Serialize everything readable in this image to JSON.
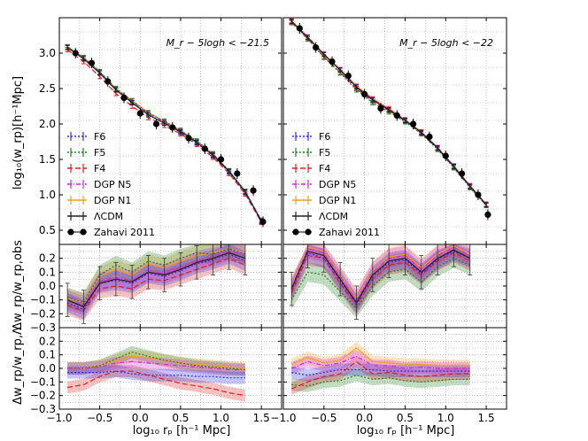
{
  "chart_data": {
    "type": "line",
    "xlabel": "log₁₀ rₚ [h⁻¹ Mpc]",
    "xlim": [
      -1.0,
      1.75
    ],
    "xticks": [
      -1.0,
      -0.5,
      0.0,
      0.5,
      1.0,
      1.5
    ],
    "x_tick_labels": [
      "−1.0",
      "−0.5",
      "0.0",
      "0.5",
      "1.0",
      "1.5"
    ],
    "ylabels": {
      "top": "log₁₀(w_rp)[h⁻¹Mpc]",
      "middle": "Δw_rp/w_rp,obs",
      "bottom": "Δw_rp/w_rp,Λ"
    },
    "ylim_top": [
      0.3,
      3.5
    ],
    "yticks_top": [
      0.5,
      1.0,
      1.5,
      2.0,
      2.5,
      3.0
    ],
    "ytick_labels_top": [
      "0.5",
      "1.0",
      "1.5",
      "2.0",
      "2.5",
      "3.0"
    ],
    "ylim_ratio": [
      -0.3,
      0.3
    ],
    "yticks_ratio": [
      -0.3,
      -0.2,
      -0.1,
      0.0,
      0.1,
      0.2
    ],
    "ytick_labels_ratio": [
      "−0.3",
      "−0.2",
      "−0.1",
      "0.0",
      "0.1",
      "0.2"
    ],
    "grid": true,
    "legend_position": "lower-left",
    "models": [
      {
        "key": "F6",
        "name": "F6",
        "color": "#3030e0",
        "dash": "2,2"
      },
      {
        "key": "F5",
        "name": "F5",
        "color": "#208020",
        "dash": "2,2"
      },
      {
        "key": "F4",
        "name": "F4",
        "color": "#e02020",
        "dash": "6,3"
      },
      {
        "key": "N5",
        "name": "DGP N5",
        "color": "#e020e0",
        "dash": "5,2,1,2"
      },
      {
        "key": "N1",
        "name": "DGP N1",
        "color": "#f0a020",
        "dash": ""
      },
      {
        "key": "LCDM",
        "name": "ΛCDM",
        "color": "#222222",
        "dash": ""
      }
    ],
    "observed_label": "Zahavi 2011",
    "panels": [
      {
        "title": "M_r − 5logh < −21.5",
        "x": [
          -0.9,
          -0.7,
          -0.5,
          -0.3,
          -0.1,
          0.1,
          0.3,
          0.5,
          0.7,
          0.9,
          1.1,
          1.3,
          1.5
        ],
        "zahavi": [
          3.08,
          2.98,
          2.85,
          2.6,
          2.37,
          2.16,
          2.0,
          1.85,
          1.68,
          1.5,
          1.3,
          1.06,
          0.72
        ],
        "zahavi_x": [
          -0.8,
          -0.6,
          -0.4,
          -0.2,
          0.0,
          0.2,
          0.4,
          0.6,
          0.8,
          1.0,
          1.2,
          1.4,
          1.52
        ],
        "zahavi_y": [
          3.0,
          2.86,
          2.6,
          2.37,
          2.15,
          2.0,
          1.95,
          1.8,
          1.65,
          1.5,
          1.3,
          1.06,
          0.62
        ],
        "wp": {
          "LCDM": [
            3.08,
            2.92,
            2.72,
            2.48,
            2.3,
            2.13,
            2.01,
            1.89,
            1.74,
            1.56,
            1.33,
            1.04,
            0.63
          ],
          "F6": [
            3.08,
            2.92,
            2.72,
            2.48,
            2.3,
            2.13,
            2.01,
            1.88,
            1.73,
            1.55,
            1.32,
            1.03,
            0.62
          ],
          "F5": [
            3.09,
            2.94,
            2.74,
            2.5,
            2.33,
            2.16,
            2.04,
            1.91,
            1.76,
            1.58,
            1.34,
            1.05,
            0.63
          ],
          "F4": [
            3.05,
            2.88,
            2.67,
            2.43,
            2.25,
            2.09,
            1.98,
            1.86,
            1.71,
            1.53,
            1.3,
            1.01,
            0.61
          ],
          "N5": [
            3.08,
            2.93,
            2.73,
            2.49,
            2.32,
            2.15,
            2.03,
            1.9,
            1.75,
            1.57,
            1.34,
            1.05,
            0.64
          ],
          "N1": [
            3.09,
            2.94,
            2.74,
            2.5,
            2.33,
            2.16,
            2.04,
            1.91,
            1.76,
            1.58,
            1.34,
            1.05,
            0.63
          ]
        },
        "ratio_obs": {
          "LCDM": [
            -0.1,
            -0.15,
            0.02,
            0.05,
            0.03,
            0.1,
            0.08,
            0.12,
            0.17,
            0.2,
            0.24,
            0.2
          ],
          "F6": [
            -0.12,
            -0.17,
            0.02,
            0.04,
            0.02,
            0.09,
            0.07,
            0.11,
            0.16,
            0.19,
            0.23,
            0.18
          ],
          "F5": [
            -0.08,
            -0.12,
            0.08,
            0.15,
            0.1,
            0.18,
            0.15,
            0.2,
            0.24,
            0.23,
            0.27,
            0.23
          ],
          "F4": [
            -0.14,
            -0.18,
            -0.02,
            0.0,
            -0.02,
            0.05,
            0.04,
            0.08,
            0.12,
            0.16,
            0.2,
            0.15
          ],
          "N5": [
            -0.1,
            -0.14,
            0.03,
            0.06,
            0.04,
            0.1,
            0.09,
            0.13,
            0.18,
            0.21,
            0.25,
            0.22
          ],
          "N1": [
            -0.09,
            -0.12,
            0.07,
            0.12,
            0.08,
            0.16,
            0.13,
            0.18,
            0.22,
            0.24,
            0.27,
            0.24
          ]
        },
        "ratio_lcdm": {
          "F6": [
            -0.03,
            -0.03,
            -0.03,
            -0.02,
            -0.04,
            -0.05,
            -0.05,
            -0.05,
            -0.06,
            -0.06,
            -0.07,
            -0.07
          ],
          "F5": [
            0.0,
            0.0,
            0.02,
            0.07,
            0.12,
            0.09,
            0.06,
            0.04,
            0.02,
            0.01,
            0.0,
            -0.01
          ],
          "F4": [
            -0.14,
            -0.12,
            -0.06,
            -0.02,
            -0.02,
            -0.05,
            -0.08,
            -0.11,
            -0.13,
            -0.15,
            -0.18,
            -0.2
          ],
          "N5": [
            0.0,
            0.0,
            0.01,
            0.04,
            0.05,
            0.04,
            0.03,
            0.02,
            0.01,
            0.0,
            -0.01,
            -0.01
          ],
          "N1": [
            0.0,
            0.0,
            0.02,
            0.06,
            0.09,
            0.08,
            0.06,
            0.04,
            0.03,
            0.02,
            0.01,
            0.0
          ]
        }
      },
      {
        "title": "M_r − 5logh < −22",
        "x": [
          -0.9,
          -0.7,
          -0.5,
          -0.3,
          -0.1,
          0.1,
          0.3,
          0.5,
          0.7,
          0.9,
          1.1,
          1.3,
          1.5
        ],
        "zahavi_x": [
          -0.8,
          -0.6,
          -0.4,
          -0.2,
          0.0,
          0.2,
          0.4,
          0.6,
          0.8,
          1.0,
          1.2,
          1.4,
          1.52
        ],
        "zahavi_y": [
          3.35,
          3.08,
          2.88,
          2.68,
          2.42,
          2.22,
          2.12,
          2.0,
          1.82,
          1.55,
          1.3,
          1.0,
          0.72
        ],
        "wp": {
          "LCDM": [
            3.45,
            3.22,
            2.98,
            2.76,
            2.52,
            2.34,
            2.2,
            2.05,
            1.88,
            1.66,
            1.4,
            1.12,
            0.86
          ],
          "F6": [
            3.45,
            3.22,
            2.98,
            2.76,
            2.52,
            2.34,
            2.2,
            2.05,
            1.88,
            1.66,
            1.4,
            1.12,
            0.86
          ],
          "F5": [
            3.44,
            3.2,
            2.94,
            2.72,
            2.48,
            2.3,
            2.17,
            2.03,
            1.86,
            1.64,
            1.38,
            1.1,
            0.85
          ],
          "F4": [
            3.43,
            3.2,
            2.95,
            2.73,
            2.5,
            2.32,
            2.19,
            2.04,
            1.87,
            1.65,
            1.39,
            1.11,
            0.85
          ],
          "N5": [
            3.45,
            3.23,
            2.99,
            2.77,
            2.53,
            2.35,
            2.21,
            2.06,
            1.89,
            1.67,
            1.41,
            1.13,
            0.87
          ],
          "N1": [
            3.46,
            3.23,
            2.99,
            2.77,
            2.54,
            2.36,
            2.22,
            2.06,
            1.89,
            1.67,
            1.41,
            1.13,
            0.87
          ]
        },
        "ratio_obs": {
          "LCDM": [
            -0.02,
            0.25,
            0.22,
            0.05,
            -0.12,
            0.08,
            0.18,
            0.2,
            0.1,
            0.2,
            0.26,
            0.2
          ],
          "F6": [
            -0.03,
            0.24,
            0.2,
            0.04,
            -0.13,
            0.07,
            0.17,
            0.19,
            0.09,
            0.19,
            0.25,
            0.2
          ],
          "F5": [
            -0.1,
            0.1,
            0.08,
            -0.04,
            -0.16,
            0.0,
            0.1,
            0.12,
            0.03,
            0.14,
            0.2,
            0.15
          ],
          "F4": [
            -0.05,
            0.22,
            0.2,
            0.02,
            -0.14,
            0.05,
            0.15,
            0.17,
            0.08,
            0.18,
            0.24,
            0.18
          ],
          "N5": [
            -0.01,
            0.27,
            0.24,
            0.07,
            -0.1,
            0.1,
            0.2,
            0.22,
            0.12,
            0.22,
            0.28,
            0.22
          ],
          "N1": [
            0.0,
            0.28,
            0.25,
            0.08,
            -0.09,
            0.11,
            0.21,
            0.23,
            0.13,
            0.23,
            0.29,
            0.23
          ]
        },
        "ratio_lcdm": {
          "F6": [
            -0.03,
            -0.05,
            -0.03,
            -0.01,
            -0.01,
            -0.01,
            -0.02,
            -0.02,
            -0.02,
            -0.02,
            -0.02,
            -0.02
          ],
          "F5": [
            -0.12,
            -0.13,
            -0.1,
            -0.09,
            -0.05,
            -0.08,
            -0.07,
            -0.09,
            -0.1,
            -0.09,
            -0.08,
            -0.08
          ],
          "F4": [
            -0.15,
            -0.1,
            -0.06,
            -0.04,
            0.05,
            -0.04,
            -0.03,
            -0.05,
            -0.06,
            -0.05,
            -0.04,
            -0.04
          ],
          "N5": [
            0.0,
            0.05,
            0.02,
            0.04,
            0.09,
            0.02,
            0.02,
            0.0,
            0.01,
            0.0,
            0.0,
            0.0
          ],
          "N1": [
            0.03,
            0.08,
            0.04,
            0.06,
            0.15,
            0.05,
            0.04,
            0.03,
            0.03,
            0.02,
            0.02,
            0.02
          ]
        }
      }
    ]
  }
}
